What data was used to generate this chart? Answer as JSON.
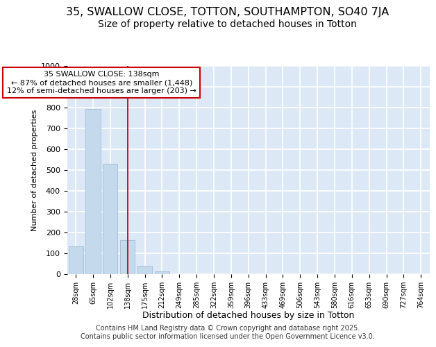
{
  "title1": "35, SWALLOW CLOSE, TOTTON, SOUTHAMPTON, SO40 7JA",
  "title2": "Size of property relative to detached houses in Totton",
  "xlabel": "Distribution of detached houses by size in Totton",
  "ylabel": "Number of detached properties",
  "categories": [
    "28sqm",
    "65sqm",
    "102sqm",
    "138sqm",
    "175sqm",
    "212sqm",
    "249sqm",
    "285sqm",
    "322sqm",
    "359sqm",
    "396sqm",
    "433sqm",
    "469sqm",
    "506sqm",
    "543sqm",
    "580sqm",
    "616sqm",
    "653sqm",
    "690sqm",
    "727sqm",
    "764sqm"
  ],
  "values": [
    135,
    795,
    530,
    165,
    40,
    15,
    0,
    0,
    0,
    0,
    0,
    0,
    0,
    0,
    0,
    0,
    0,
    0,
    0,
    0,
    0
  ],
  "bar_color": "#c5d9ed",
  "bar_edgecolor": "#a0bdd8",
  "highlight_index": 3,
  "red_line_color": "#cc0000",
  "annotation_line1": "35 SWALLOW CLOSE: 138sqm",
  "annotation_line2": "← 87% of detached houses are smaller (1,448)",
  "annotation_line3": "12% of semi-detached houses are larger (203) →",
  "annotation_box_edgecolor": "#cc0000",
  "annotation_box_facecolor": "#ffffff",
  "ylim": [
    0,
    1000
  ],
  "yticks": [
    0,
    100,
    200,
    300,
    400,
    500,
    600,
    700,
    800,
    900,
    1000
  ],
  "bg_color": "#dce8f5",
  "grid_color": "#ffffff",
  "footer": "Contains HM Land Registry data © Crown copyright and database right 2025.\nContains public sector information licensed under the Open Government Licence v3.0.",
  "title1_fontsize": 11.5,
  "title2_fontsize": 10,
  "annotation_fontsize": 8,
  "footer_fontsize": 7,
  "ylabel_fontsize": 8,
  "xlabel_fontsize": 9
}
